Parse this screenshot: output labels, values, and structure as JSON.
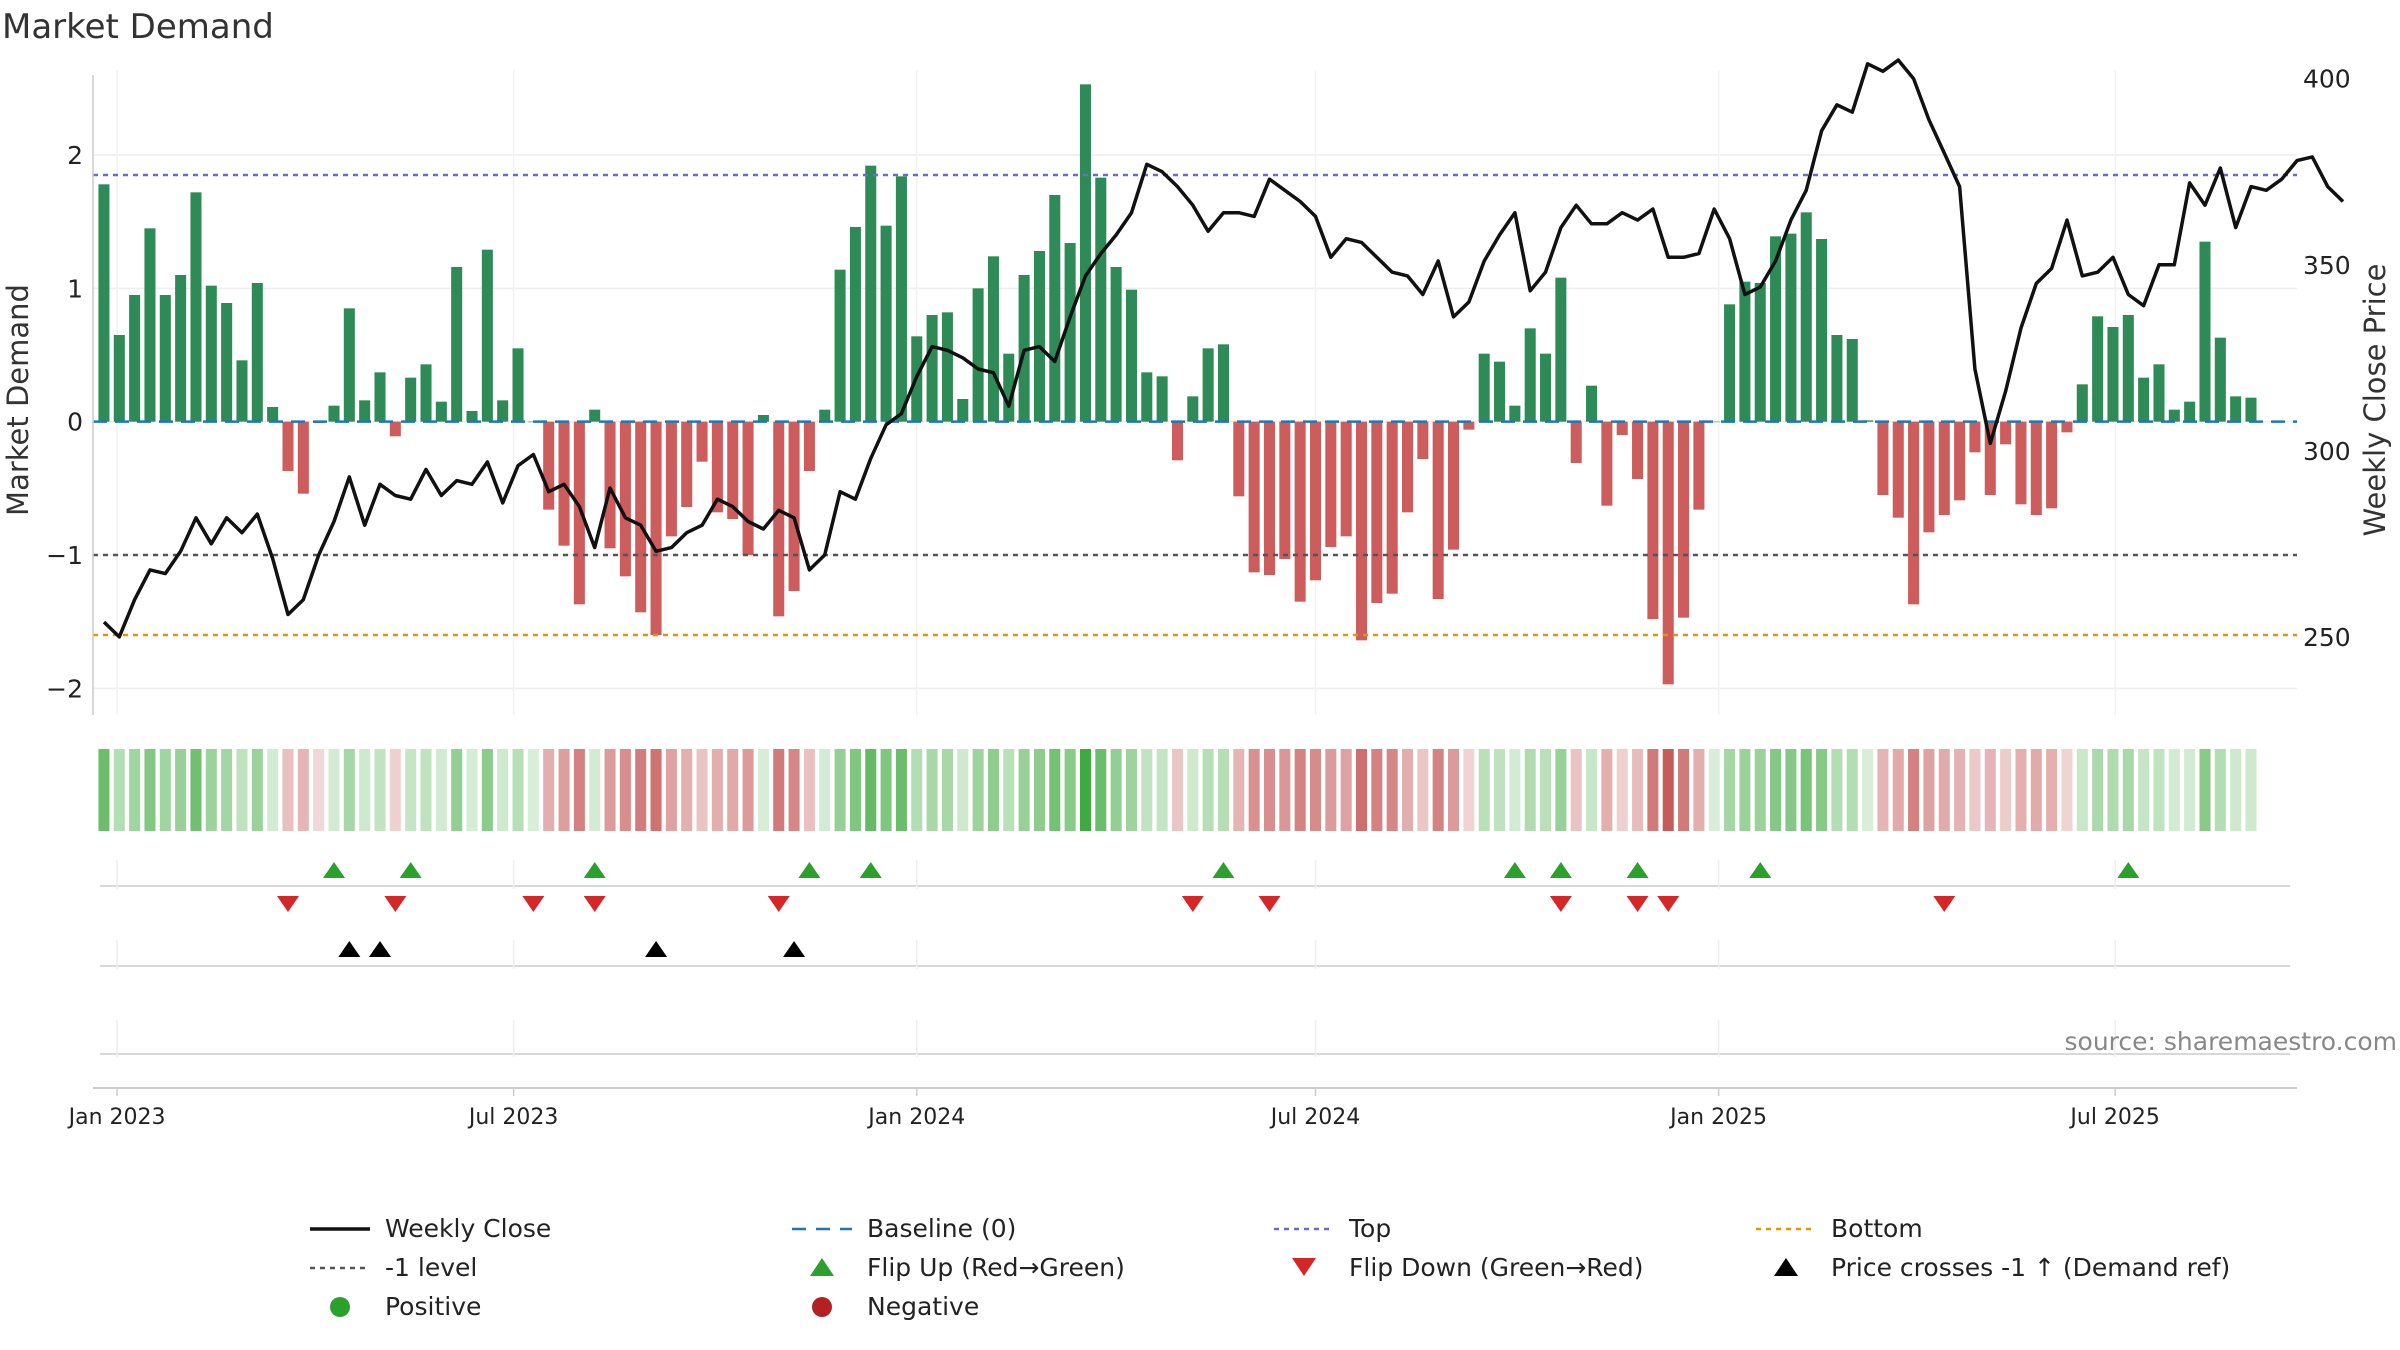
{
  "chart_data": {
    "type": "bar",
    "title": "Market Demand",
    "ylabel": "Market Demand",
    "y2label": "Weekly Close Price",
    "ylim": [
      -2.2,
      2.6
    ],
    "y2lim": [
      229,
      401
    ],
    "yticks": [
      -2,
      -1,
      0,
      1,
      2
    ],
    "y2ticks": [
      250,
      300,
      350,
      400
    ],
    "xlim": [
      "2022-12-21",
      "2025-09-22"
    ],
    "start_date": "2022-12-26",
    "xticks": [
      {
        "date": "2023-01-01",
        "label": "Jan 2023"
      },
      {
        "date": "2023-07-01",
        "label": "Jul 2023"
      },
      {
        "date": "2024-01-01",
        "label": "Jan 2024"
      },
      {
        "date": "2024-07-01",
        "label": "Jul 2024"
      },
      {
        "date": "2025-01-01",
        "label": "Jan 2025"
      },
      {
        "date": "2025-07-01",
        "label": "Jul 2025"
      }
    ],
    "reference_lines": [
      {
        "name": "Baseline (0)",
        "value": 0,
        "color": "#1f77b4",
        "style": "dashed"
      },
      {
        "name": "Top",
        "value": 1.85,
        "color": "#6a6ad0",
        "style": "dotted"
      },
      {
        "name": "-1 level",
        "value": -1,
        "color": "#555555",
        "style": "dotted"
      },
      {
        "name": "Bottom",
        "value": -1.6,
        "color": "#e69500",
        "style": "dotted"
      }
    ],
    "series": [
      {
        "name": "Market Demand",
        "axis": "left",
        "kind": "bar",
        "values": [
          1.78,
          0.65,
          0.95,
          1.45,
          0.95,
          1.1,
          1.72,
          1.02,
          0.89,
          0.46,
          1.04,
          0.11,
          -0.37,
          -0.54,
          -0.01,
          0.12,
          0.85,
          0.16,
          0.37,
          -0.11,
          0.33,
          0.43,
          0.15,
          1.16,
          0.08,
          1.29,
          0.16,
          0.55,
          0.0,
          -0.66,
          -0.93,
          -1.37,
          0.09,
          -0.95,
          -1.16,
          -1.43,
          -1.6,
          -0.86,
          -0.64,
          -0.3,
          -0.68,
          -0.73,
          -1.0,
          0.05,
          -1.46,
          -1.27,
          -0.37,
          0.09,
          1.14,
          1.46,
          1.92,
          1.47,
          1.84,
          0.64,
          0.8,
          0.82,
          0.17,
          1.0,
          1.24,
          0.51,
          1.1,
          1.28,
          1.7,
          1.34,
          2.53,
          1.83,
          1.16,
          0.99,
          0.37,
          0.34,
          -0.29,
          0.19,
          0.55,
          0.58,
          -0.56,
          -1.13,
          -1.15,
          -1.03,
          -1.35,
          -1.19,
          -0.94,
          -0.86,
          -1.64,
          -1.36,
          -1.29,
          -0.68,
          -0.28,
          -1.33,
          -0.96,
          -0.06,
          0.51,
          0.45,
          0.12,
          0.7,
          0.51,
          1.08,
          -0.31,
          0.27,
          -0.63,
          -0.1,
          -0.43,
          -1.48,
          -1.97,
          -1.47,
          -0.66,
          0.0,
          0.88,
          1.05,
          1.04,
          1.39,
          1.41,
          1.57,
          1.37,
          0.65,
          0.62,
          0.01,
          -0.55,
          -0.72,
          -1.37,
          -0.83,
          -0.7,
          -0.59,
          -0.23,
          -0.55,
          -0.17,
          -0.62,
          -0.7,
          -0.65,
          -0.08,
          0.28,
          0.79,
          0.71,
          0.8,
          0.33,
          0.43,
          0.09,
          0.15,
          1.35,
          0.63,
          0.19,
          0.18
        ]
      },
      {
        "name": "Weekly Close",
        "axis": "right",
        "kind": "line",
        "color": "#111111",
        "values": [
          254,
          250,
          260,
          268,
          267,
          273,
          282,
          275,
          282,
          278,
          283,
          271,
          256,
          260,
          272,
          281,
          293,
          280,
          291,
          288,
          287,
          295,
          288,
          292,
          291,
          297,
          286,
          296,
          299,
          289,
          291,
          285,
          274,
          290,
          282,
          280,
          273,
          274,
          278,
          280,
          287,
          285,
          281,
          279,
          284,
          282,
          268,
          272,
          289,
          287,
          298,
          307,
          310,
          320,
          328,
          327,
          325,
          322,
          321,
          312,
          327,
          328,
          324,
          336,
          347,
          353,
          358,
          364,
          377,
          375,
          371,
          366,
          359,
          364,
          364,
          363,
          373,
          370,
          367,
          363,
          352,
          357,
          356,
          352,
          348,
          347,
          342,
          351,
          336,
          340,
          351,
          358,
          364,
          343,
          348,
          360,
          366,
          361,
          361,
          364,
          362,
          365,
          352,
          352,
          353,
          365,
          357,
          342,
          344,
          351,
          362,
          370,
          386,
          393,
          391,
          404,
          402,
          405,
          400,
          389,
          380,
          371,
          322,
          302,
          316,
          333,
          345,
          349,
          362,
          347,
          348,
          352,
          342,
          339,
          350,
          350,
          372,
          366,
          376,
          360,
          371,
          370,
          373,
          378,
          379,
          371,
          367
        ],
        "tick_labels": [
          "Jan 2023",
          "Jul 2023",
          "Jan 2024",
          "Jul 2024",
          "Jan 2025",
          "Jul 2025"
        ]
      }
    ],
    "events": {
      "flip_up": [
        15,
        20,
        32,
        46,
        50,
        73,
        92,
        95,
        100,
        108,
        132
      ],
      "flip_down": [
        12,
        19,
        28,
        32,
        44,
        71,
        76,
        95,
        100,
        102,
        120
      ],
      "price_crosses": [
        16,
        18,
        36,
        45
      ]
    },
    "legend": [
      {
        "name": "Weekly Close",
        "marker": "line-solid",
        "color": "#111111"
      },
      {
        "name": "Baseline (0)",
        "marker": "line-dashed",
        "color": "#1f77b4"
      },
      {
        "name": "Top",
        "marker": "line-dotted",
        "color": "#6a6ad0"
      },
      {
        "name": "Bottom",
        "marker": "line-dotted",
        "color": "#e69500"
      },
      {
        "name": "-1 level",
        "marker": "line-dotted",
        "color": "#555555"
      },
      {
        "name": "Flip Up (Red→Green)",
        "marker": "triangle-up",
        "color": "#2ca02c"
      },
      {
        "name": "Flip Down (Green→Red)",
        "marker": "triangle-down",
        "color": "#d62728"
      },
      {
        "name": "Price crosses -1 ↑ (Demand ref)",
        "marker": "triangle-up",
        "color": "#000000"
      },
      {
        "name": "Positive",
        "marker": "circle",
        "color": "#2ca02c"
      },
      {
        "name": "Negative",
        "marker": "circle",
        "color": "#b22222"
      }
    ],
    "legend_position": "bottom-center",
    "source": "source: sharemaestro.com",
    "colors": {
      "positive": "#2e8b57",
      "negative": "#cd5c5c",
      "heat_pos": "#2ca02c",
      "heat_neg": "#b22222"
    }
  }
}
